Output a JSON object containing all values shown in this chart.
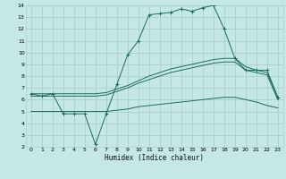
{
  "xlabel": "Humidex (Indice chaleur)",
  "background_color": "#c5e8e5",
  "grid_color": "#a8d0cc",
  "line_color": "#1a6b5e",
  "xlim": [
    -0.5,
    23.5
  ],
  "ylim": [
    2,
    14
  ],
  "xticks": [
    0,
    1,
    2,
    3,
    4,
    5,
    6,
    7,
    8,
    9,
    10,
    11,
    12,
    13,
    14,
    15,
    16,
    17,
    18,
    19,
    20,
    21,
    22,
    23
  ],
  "yticks": [
    2,
    3,
    4,
    5,
    6,
    7,
    8,
    9,
    10,
    11,
    12,
    13,
    14
  ],
  "series": [
    {
      "x": [
        0,
        1,
        2,
        3,
        4,
        5,
        6,
        7,
        8,
        9,
        10,
        11,
        12,
        13,
        14,
        15,
        16,
        17,
        18,
        19,
        20,
        21,
        22,
        23
      ],
      "y": [
        6.5,
        6.3,
        6.5,
        4.8,
        4.8,
        4.8,
        2.2,
        4.8,
        7.3,
        9.8,
        11.0,
        13.2,
        13.3,
        13.4,
        13.7,
        13.5,
        13.8,
        14.0,
        12.0,
        9.5,
        8.5,
        8.5,
        8.5,
        6.2
      ],
      "marker": "+"
    },
    {
      "x": [
        0,
        1,
        2,
        3,
        4,
        5,
        6,
        7,
        8,
        9,
        10,
        11,
        12,
        13,
        14,
        15,
        16,
        17,
        18,
        19,
        20,
        21,
        22,
        23
      ],
      "y": [
        6.5,
        6.5,
        6.5,
        6.5,
        6.5,
        6.5,
        6.5,
        6.6,
        6.9,
        7.2,
        7.6,
        8.0,
        8.3,
        8.6,
        8.8,
        9.0,
        9.2,
        9.4,
        9.5,
        9.5,
        8.8,
        8.5,
        8.3,
        6.2
      ],
      "marker": null
    },
    {
      "x": [
        0,
        1,
        2,
        3,
        4,
        5,
        6,
        7,
        8,
        9,
        10,
        11,
        12,
        13,
        14,
        15,
        16,
        17,
        18,
        19,
        20,
        21,
        22,
        23
      ],
      "y": [
        6.3,
        6.3,
        6.3,
        6.3,
        6.3,
        6.3,
        6.3,
        6.4,
        6.7,
        7.0,
        7.4,
        7.7,
        8.0,
        8.3,
        8.5,
        8.7,
        8.9,
        9.1,
        9.2,
        9.2,
        8.5,
        8.3,
        8.1,
        6.0
      ],
      "marker": null
    },
    {
      "x": [
        0,
        1,
        2,
        3,
        4,
        5,
        6,
        7,
        8,
        9,
        10,
        11,
        12,
        13,
        14,
        15,
        16,
        17,
        18,
        19,
        20,
        21,
        22,
        23
      ],
      "y": [
        5.0,
        5.0,
        5.0,
        5.0,
        5.0,
        5.0,
        5.0,
        5.0,
        5.1,
        5.2,
        5.4,
        5.5,
        5.6,
        5.7,
        5.8,
        5.9,
        6.0,
        6.1,
        6.2,
        6.2,
        6.0,
        5.8,
        5.5,
        5.3
      ],
      "marker": null
    }
  ]
}
